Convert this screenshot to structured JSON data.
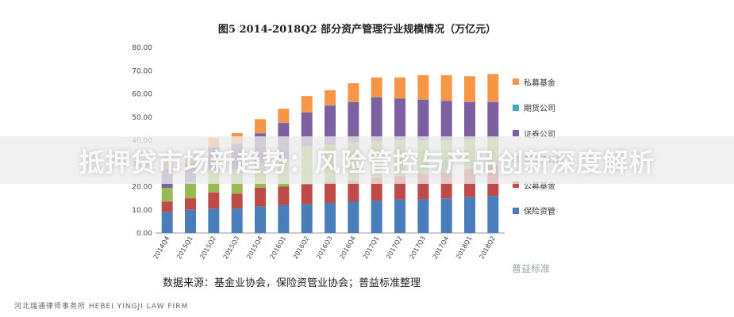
{
  "banner": {
    "text": "抵押贷市场新趋势：风险管控与产品创新深度解析"
  },
  "chart_data": {
    "type": "bar",
    "stacked": true,
    "title": "图5  2014-2018Q2 部分资产管理行业规模情况（万亿元）",
    "categories": [
      "2014Q4",
      "2015Q1",
      "2015Q2",
      "2015Q3",
      "2015Q4",
      "2016Q1",
      "2016Q2",
      "2016Q3",
      "2016Q4",
      "2017Q1",
      "2017Q2",
      "2017Q3",
      "2017Q4",
      "2018Q1",
      "2018Q2"
    ],
    "ylim": [
      0,
      80
    ],
    "yticks": [
      "0.00",
      "10.00",
      "20.00",
      "30.00",
      "40.00",
      "50.00",
      "60.00",
      "70.00",
      "80.00"
    ],
    "grid": false,
    "legend_position": "right",
    "series": [
      {
        "name": "保险资管",
        "color": "#4a7ebb",
        "values": [
          9,
          10,
          10.5,
          10.5,
          11.5,
          12,
          12.5,
          13,
          13.5,
          14,
          14.5,
          14.5,
          15,
          15.5,
          16
        ]
      },
      {
        "name": "公募基金",
        "color": "#be4b48",
        "values": [
          4.5,
          5,
          7,
          6.5,
          8,
          8,
          8.5,
          9,
          9,
          10,
          10,
          11,
          11,
          12,
          13
        ]
      },
      {
        "name": "基金子公司",
        "color": "#98b954",
        "values": [
          6,
          7,
          9.5,
          10.5,
          10.5,
          11.5,
          16.5,
          16,
          16.5,
          15.5,
          15.5,
          14.5,
          14,
          13,
          12
        ]
      },
      {
        "name": "证券公司",
        "color": "#7d60a0",
        "values": [
          8,
          8,
          10,
          11,
          13,
          16,
          14.5,
          17,
          17.5,
          19,
          18,
          17.5,
          17,
          16,
          15.5
        ]
      },
      {
        "name": "期货公司",
        "color": "#46aac5",
        "values": [
          0.1,
          0.1,
          0.1,
          0.1,
          0.1,
          0.1,
          0.1,
          0.1,
          0.1,
          0.1,
          0.1,
          0.1,
          0.1,
          0.1,
          0.1
        ]
      },
      {
        "name": "私募基金",
        "color": "#f79646",
        "values": [
          3.5,
          3.5,
          4,
          4.5,
          6,
          6,
          7,
          6.5,
          8,
          8.5,
          9,
          10.5,
          11,
          11,
          12
        ]
      }
    ],
    "source": "数据来源：基金业协会，保险资管业协会；普益标准整理"
  },
  "watermark": "普益标准",
  "footer": "河北瑞通律师事务所  HEBEI  YINGJI  LAW  FIRM"
}
